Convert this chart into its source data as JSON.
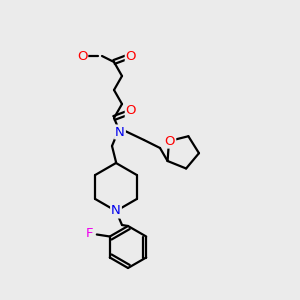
{
  "bg_color": "#ebebeb",
  "atom_colors": {
    "O": "#ff0000",
    "N": "#0000ee",
    "F": "#ee00ee",
    "C": "#000000"
  },
  "bond_color": "#000000",
  "bond_width": 1.6,
  "figsize": [
    3.0,
    3.0
  ],
  "dpi": 100
}
